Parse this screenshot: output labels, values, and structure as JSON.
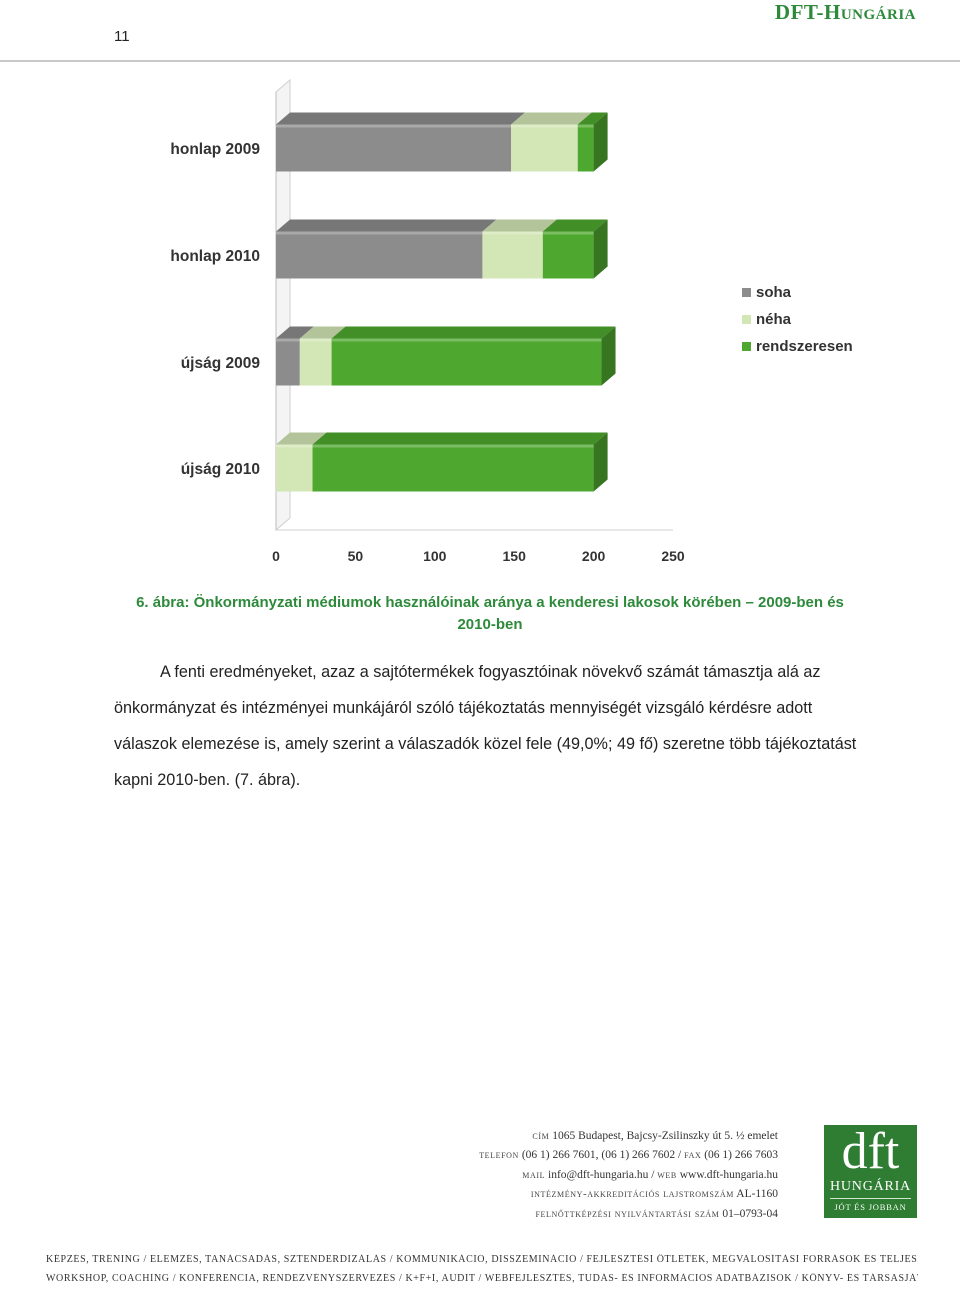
{
  "header": {
    "page_number": "11",
    "brand": "DFT-Hungária"
  },
  "chart_data": {
    "type": "bar",
    "orientation": "horizontal",
    "stacked": true,
    "style": "3d",
    "categories": [
      "honlap 2009",
      "honlap 2010",
      "újság 2009",
      "újság 2010"
    ],
    "series": [
      {
        "name": "soha",
        "color": "#8c8c8c",
        "values": [
          148,
          130,
          15,
          0
        ]
      },
      {
        "name": "néha",
        "color": "#d3e6b5",
        "values": [
          42,
          38,
          20,
          23
        ]
      },
      {
        "name": "rendszeresen",
        "color": "#4ea72e",
        "values": [
          10,
          32,
          170,
          177
        ]
      }
    ],
    "xlim": [
      0,
      250
    ],
    "xticks": [
      "0",
      "50",
      "100",
      "150",
      "200",
      "250"
    ],
    "legend_position": "right",
    "grid": false
  },
  "caption": {
    "line1": "6. ábra: Önkormányzati médiumok használóinak aránya a kenderesi lakosok körében – 2009-ben és",
    "line2": "2010-ben"
  },
  "body": {
    "paragraph": "A fenti eredményeket, azaz a sajtótermékek fogyasztóinak növekvő számát támasztja alá az önkormányzat és intézményei munkájáról szóló tájékoztatás mennyiségét vizsgáló kérdésre adott válaszok elemezése is, amely szerint a válaszadók közel fele (49,0%; 49 fő) szeretne több tájékoztatást kapni 2010-ben. (7. ábra)."
  },
  "contact": {
    "address_label": "cím",
    "address": "1065 Budapest, Bajcsy-Zsilinszky út 5. ½ emelet",
    "phone_label": "telefon",
    "phone": "(06 1) 266 7601, (06 1) 266 7602",
    "fax_label": "fax",
    "fax": "(06 1) 266 7603",
    "mail_label": "mail",
    "mail": "info@dft-hungaria.hu",
    "web_label": "web",
    "web": "www.dft-hungaria.hu",
    "accred_label": "intézmény-akkreditációs lajstromszám",
    "accred": "AL-1160",
    "adult_label": "felnőttképzési nyilvántartási szám",
    "adult": "01–0793-04"
  },
  "logo": {
    "main": "dft",
    "sub": "HUNGÁRIA",
    "tagline": "JÓT ÉS JOBBAN",
    "color": "#2e7d32"
  },
  "footer": {
    "line1": "KÉPZÉS, TRÉNING / ELEMZÉS, TANÁCSADÁS, SZTENDERDIZÁLÁS / KOMMUNIKÁCIÓ, DISSZEMINÁCIÓ / FEJLESZTÉSI ÖTLETEK, MEGVALÓSÍTÁSI FORRÁSOK ÉS TELJESKÖRŰ PROJEKTMEGVALÓSÍTÁS",
    "line2": "WORKSHOP, COACHING / KONFERENCIA, RENDEZVÉNYSZERVEZÉS / K+F+I, AUDIT / WEBFEJLESZTÉS, TUDÁS- ÉS INFORMÁCIÓS ADATBÁZISOK / KÖNYV- ÉS TÁRSASJÁTÉK-KIADÁS"
  }
}
